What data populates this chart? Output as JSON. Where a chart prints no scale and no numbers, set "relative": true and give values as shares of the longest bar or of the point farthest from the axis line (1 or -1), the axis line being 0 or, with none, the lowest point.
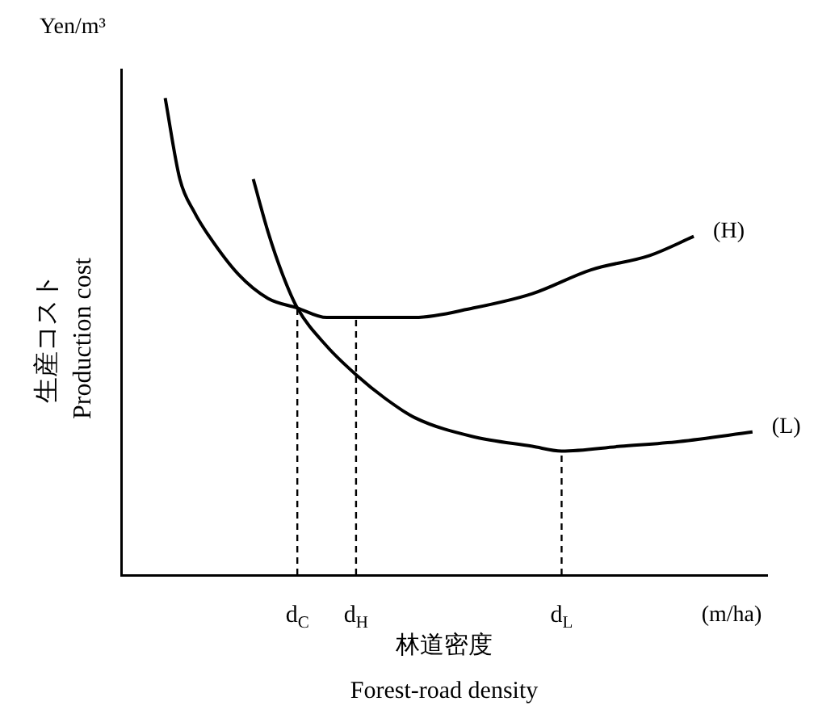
{
  "chart_data": {
    "type": "line",
    "relative": true,
    "ylabel": "生産コスト\nProduction cost",
    "xlabel": "林道密度\nForest-road density",
    "annotations": [
      "Yen/m³",
      "(m/ha)"
    ],
    "categories": [
      null,
      null,
      null,
      null,
      null,
      null,
      null,
      null,
      null,
      null,
      null,
      null,
      "d$_{C}$",
      null,
      null,
      null,
      "d$_{H}$",
      null,
      null,
      null,
      null,
      null,
      null,
      null,
      null,
      null,
      null,
      null,
      null,
      null,
      "d$_{L}$",
      null,
      null,
      null,
      null,
      null,
      null,
      null,
      null,
      null,
      null,
      null,
      null,
      null,
      null
    ],
    "series": [
      {
        "name": "(H)",
        "color": "#000000",
        "values": [
          null,
          null,
          null,
          1.0,
          0.83,
          0.76,
          0.71,
          null,
          0.63,
          null,
          0.58,
          null,
          0.56,
          null,
          0.54,
          null,
          0.54,
          null,
          null,
          null,
          0.54,
          null,
          null,
          null,
          0.56,
          null,
          null,
          null,
          0.59,
          null,
          null,
          null,
          0.64,
          null,
          null,
          null,
          0.67,
          null,
          null,
          0.71,
          null,
          null,
          null,
          null,
          null
        ]
      },
      {
        "name": "(L)",
        "color": "#000000",
        "values": [
          null,
          null,
          null,
          null,
          null,
          null,
          null,
          null,
          null,
          0.83,
          0.72,
          0.63,
          0.56,
          null,
          0.48,
          null,
          0.42,
          null,
          0.37,
          null,
          0.33,
          null,
          null,
          null,
          0.29,
          null,
          null,
          null,
          0.27,
          null,
          0.26,
          null,
          null,
          null,
          0.27,
          null,
          null,
          null,
          0.28,
          null,
          null,
          null,
          null,
          0.3,
          null
        ]
      }
    ],
    "ref_lines": [
      {
        "axis": "x",
        "value": "d$_{C}$",
        "line_style": "dashed"
      },
      {
        "axis": "x",
        "value": "d$_{H}$",
        "line_style": "dashed"
      },
      {
        "axis": "x",
        "value": "d$_{L}$",
        "line_style": "dashed"
      }
    ],
    "legend": false,
    "grid": false,
    "marker": "none",
    "line_style": "solid"
  }
}
